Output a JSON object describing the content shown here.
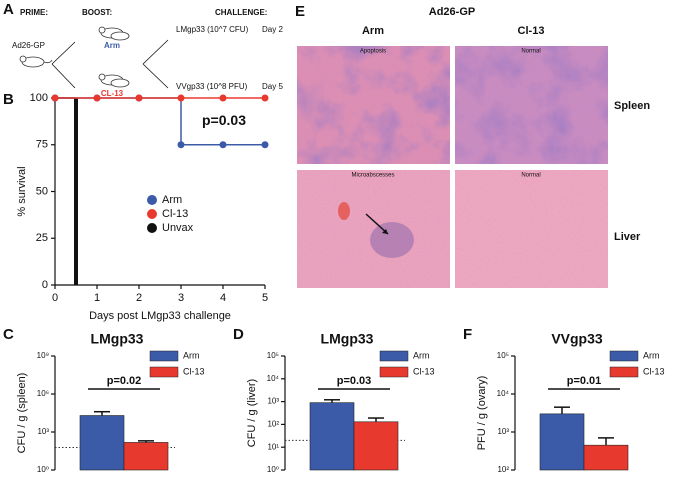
{
  "panel_a": {
    "label": "A",
    "prime": "PRIME:",
    "prime_vaccine": "Ad26-GP",
    "boost": "BOOST:",
    "boost_arm": "Arm",
    "boost_cl13": "CL-13",
    "challenge": "CHALLENGE:",
    "challenge_1": "LMgp33 (10^7 CFU)",
    "challenge_1_day": "Day 2",
    "challenge_2": "VVgp33 (10^8 PFU)",
    "challenge_2_day": "Day 5"
  },
  "panel_e": {
    "label": "E",
    "title": "Ad26-GP",
    "columns": [
      "Arm",
      "Cl-13"
    ],
    "rows": [
      "Spleen",
      "Liver"
    ],
    "captions": [
      [
        "Apoptosis",
        "Normal"
      ],
      [
        "Microabscesses",
        "Normal"
      ]
    ]
  },
  "chart_data": [
    {
      "label": "B",
      "type": "line",
      "ylabel": "% survival",
      "xlabel": "Days post LMgp33 challenge",
      "annotation": "p=0.03",
      "xlim": [
        0,
        5
      ],
      "xticks": [
        0,
        1,
        2,
        3,
        4,
        5
      ],
      "ylim": [
        0,
        100
      ],
      "yticks": [
        0,
        25,
        50,
        75,
        100
      ],
      "series": [
        {
          "name": "Arm",
          "color": "#3b5ba9",
          "x": [
            0,
            1,
            2,
            3,
            4,
            5
          ],
          "values": [
            100,
            100,
            100,
            75,
            75,
            75
          ]
        },
        {
          "name": "Cl-13",
          "color": "#e8392f",
          "x": [
            0,
            1,
            2,
            3,
            4,
            5
          ],
          "values": [
            100,
            100,
            100,
            100,
            100,
            100
          ]
        },
        {
          "name": "Unvax",
          "color": "#111111",
          "x": [
            0,
            0.5
          ],
          "values": [
            100,
            0
          ],
          "markers": false
        }
      ]
    },
    {
      "label": "C",
      "type": "bar",
      "title": "LMgp33",
      "ylabel": "CFU / g (spleen)",
      "annotation": "p=0.02",
      "log_scale": true,
      "ylim": [
        1,
        1000000000
      ],
      "yticks": [
        {
          "value": 1,
          "label": "10⁰"
        },
        {
          "value": 1000,
          "label": "10³"
        },
        {
          "value": 1000000,
          "label": "10⁶"
        },
        {
          "value": 1000000000,
          "label": "10⁹"
        }
      ],
      "detection_limit": 60,
      "categories": [
        null
      ],
      "series": [
        {
          "name": "Arm",
          "color": "#3b5ba9",
          "values": [
            20000
          ],
          "errors": [
            20000
          ]
        },
        {
          "name": "Cl-13",
          "color": "#e8392f",
          "values": [
            150
          ],
          "errors": [
            50
          ]
        }
      ]
    },
    {
      "label": "D",
      "type": "bar",
      "title": "LMgp33",
      "ylabel": "CFU / g (liver)",
      "annotation": "p=0.03",
      "log_scale": true,
      "ylim": [
        1,
        100000
      ],
      "yticks": [
        {
          "value": 1,
          "label": "10⁰"
        },
        {
          "value": 10,
          "label": "10¹"
        },
        {
          "value": 100,
          "label": "10²"
        },
        {
          "value": 1000,
          "label": "10³"
        },
        {
          "value": 10000,
          "label": "10⁴"
        },
        {
          "value": 100000,
          "label": "10⁵"
        }
      ],
      "detection_limit": 20,
      "categories": [
        null
      ],
      "series": [
        {
          "name": "Arm",
          "color": "#3b5ba9",
          "values": [
            900
          ],
          "errors": [
            300
          ]
        },
        {
          "name": "Cl-13",
          "color": "#e8392f",
          "values": [
            130
          ],
          "errors": [
            60
          ]
        }
      ]
    },
    {
      "label": "F",
      "type": "bar",
      "title": "VVgp33",
      "ylabel": "PFU / g (ovary)",
      "annotation": "p=0.01",
      "log_scale": true,
      "ylim": [
        100,
        100000
      ],
      "yticks": [
        {
          "value": 100,
          "label": "10²"
        },
        {
          "value": 1000,
          "label": "10³"
        },
        {
          "value": 10000,
          "label": "10⁴"
        },
        {
          "value": 100000,
          "label": "10⁵"
        }
      ],
      "categories": [
        null
      ],
      "series": [
        {
          "name": "Arm",
          "color": "#3b5ba9",
          "values": [
            3000
          ],
          "errors": [
            1500
          ]
        },
        {
          "name": "Cl-13",
          "color": "#e8392f",
          "values": [
            450
          ],
          "errors": [
            250
          ]
        }
      ]
    }
  ]
}
